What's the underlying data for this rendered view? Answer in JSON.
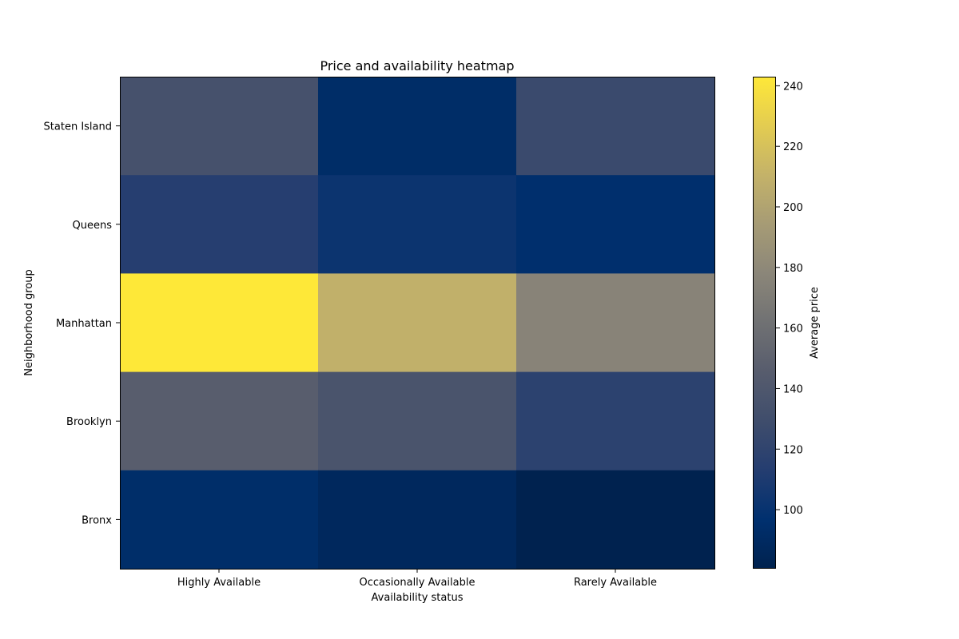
{
  "chart_data": {
    "type": "heatmap",
    "title": "Price and availability heatmap",
    "xlabel": "Availability status",
    "ylabel": "Neighborhood group",
    "x_categories": [
      "Highly Available",
      "Occasionally Available",
      "Rarely Available"
    ],
    "y_categories_top_to_bottom": [
      "Staten Island",
      "Queens",
      "Manhattan",
      "Brooklyn",
      "Bronx"
    ],
    "values": [
      [
        134,
        93,
        126
      ],
      [
        114,
        102,
        96
      ],
      [
        243,
        209,
        176
      ],
      [
        146,
        137,
        118
      ],
      [
        94,
        88,
        81
      ]
    ],
    "colormap": "cividis",
    "colorbar": {
      "label": "Average price",
      "range": [
        80.5,
        243
      ],
      "ticks": [
        100,
        120,
        140,
        160,
        180,
        200,
        220,
        240
      ]
    },
    "grid": false
  }
}
